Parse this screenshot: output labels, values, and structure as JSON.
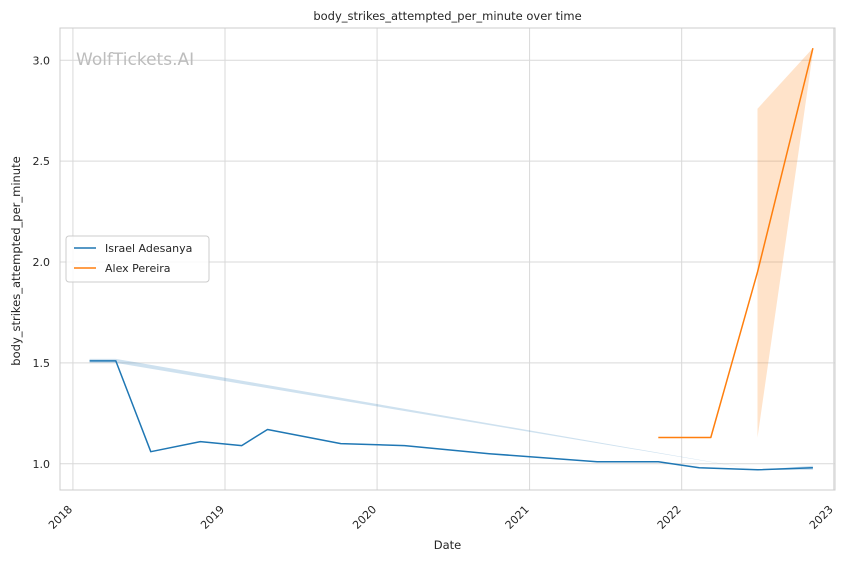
{
  "chart_data": {
    "type": "line",
    "title": "body_strikes_attempted_per_minute over time",
    "xlabel": "Date",
    "ylabel": "body_strikes_attempted_per_minute",
    "watermark": "WolfTickets.AI",
    "x_ticks": [
      "2018",
      "2019",
      "2020",
      "2021",
      "2022",
      "2023"
    ],
    "y_ticks": [
      "1.0",
      "1.5",
      "2.0",
      "2.5",
      "3.0"
    ],
    "xlim": [
      "2017-12-01",
      "2023-01-04"
    ],
    "ylim": [
      0.87,
      3.16
    ],
    "grid": true,
    "legend_position": "center-left",
    "series": [
      {
        "name": "Israel Adesanya",
        "color": "#1f77b4",
        "points": [
          {
            "x": "2018-02-10",
            "y": 1.51
          },
          {
            "x": "2018-04-14",
            "y": 1.51
          },
          {
            "x": "2018-07-07",
            "y": 1.06
          },
          {
            "x": "2018-11-03",
            "y": 1.11
          },
          {
            "x": "2019-02-10",
            "y": 1.09
          },
          {
            "x": "2019-04-13",
            "y": 1.17
          },
          {
            "x": "2019-10-06",
            "y": 1.1
          },
          {
            "x": "2020-03-07",
            "y": 1.09
          },
          {
            "x": "2020-09-26",
            "y": 1.05
          },
          {
            "x": "2021-06-12",
            "y": 1.01
          },
          {
            "x": "2021-11-06",
            "y": 1.01
          },
          {
            "x": "2022-02-12",
            "y": 0.98
          },
          {
            "x": "2022-07-02",
            "y": 0.97
          },
          {
            "x": "2022-11-12",
            "y": 0.98
          }
        ],
        "band": [
          {
            "x": "2018-02-10",
            "lo": 1.5,
            "hi": 1.52
          },
          {
            "x": "2018-04-14",
            "lo": 1.5,
            "hi": 1.52
          },
          {
            "x": "2022-07-02",
            "lo": 0.97,
            "hi": 0.97
          },
          {
            "x": "2022-11-12",
            "lo": 0.97,
            "hi": 0.99
          }
        ]
      },
      {
        "name": "Alex Pereira",
        "color": "#ff7f0e",
        "points": [
          {
            "x": "2021-11-06",
            "y": 1.13
          },
          {
            "x": "2022-03-12",
            "y": 1.13
          },
          {
            "x": "2022-07-02",
            "y": 1.95
          },
          {
            "x": "2022-11-12",
            "y": 3.06
          }
        ],
        "band": [
          {
            "x": "2022-07-02",
            "lo": 1.13,
            "hi": 2.76
          },
          {
            "x": "2022-11-12",
            "lo": 3.04,
            "hi": 3.06
          }
        ]
      }
    ]
  }
}
